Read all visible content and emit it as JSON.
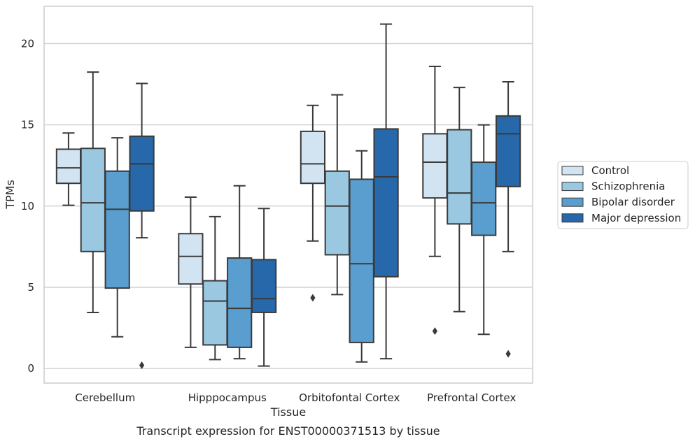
{
  "chart_data": {
    "type": "box",
    "title": "",
    "caption": "Transcript expression for ENST00000371513 by tissue",
    "xlabel": "Tissue",
    "ylabel": "TPMs",
    "ylim": [
      -0.9,
      22.3
    ],
    "yticks": [
      0,
      5,
      10,
      15,
      20
    ],
    "grid": "horizontal",
    "legend_position": "right",
    "categories": [
      "Cerebellum",
      "Hipppocampus",
      "Orbitofontal Cortex",
      "Prefrontal Cortex"
    ],
    "series": [
      {
        "name": "Control",
        "color": "#d2e3f2",
        "boxes": [
          {
            "whislo": 10.05,
            "q1": 11.4,
            "med": 12.35,
            "q3": 13.5,
            "whishi": 14.5,
            "fliers": []
          },
          {
            "whislo": 1.3,
            "q1": 5.2,
            "med": 6.9,
            "q3": 8.3,
            "whishi": 10.55,
            "fliers": []
          },
          {
            "whislo": 7.85,
            "q1": 11.4,
            "med": 12.6,
            "q3": 14.6,
            "whishi": 16.2,
            "fliers": [
              4.35
            ]
          },
          {
            "whislo": 6.9,
            "q1": 10.5,
            "med": 12.7,
            "q3": 14.45,
            "whishi": 18.6,
            "fliers": [
              2.3
            ]
          }
        ]
      },
      {
        "name": "Schizophrenia",
        "color": "#9ac8e0",
        "boxes": [
          {
            "whislo": 3.45,
            "q1": 7.2,
            "med": 10.2,
            "q3": 13.55,
            "whishi": 18.25,
            "fliers": []
          },
          {
            "whislo": 0.55,
            "q1": 1.45,
            "med": 4.15,
            "q3": 5.4,
            "whishi": 9.35,
            "fliers": []
          },
          {
            "whislo": 4.55,
            "q1": 7.0,
            "med": 10.0,
            "q3": 12.15,
            "whishi": 16.85,
            "fliers": []
          },
          {
            "whislo": 3.5,
            "q1": 8.9,
            "med": 10.8,
            "q3": 14.7,
            "whishi": 17.3,
            "fliers": []
          }
        ]
      },
      {
        "name": "Bipolar disorder",
        "color": "#5a9ecf",
        "boxes": [
          {
            "whislo": 1.95,
            "q1": 4.95,
            "med": 9.8,
            "q3": 12.15,
            "whishi": 14.2,
            "fliers": []
          },
          {
            "whislo": 0.6,
            "q1": 1.3,
            "med": 3.7,
            "q3": 6.8,
            "whishi": 11.25,
            "fliers": []
          },
          {
            "whislo": 0.4,
            "q1": 1.6,
            "med": 6.45,
            "q3": 11.65,
            "whishi": 13.4,
            "fliers": []
          },
          {
            "whislo": 2.1,
            "q1": 8.2,
            "med": 10.2,
            "q3": 12.7,
            "whishi": 15.0,
            "fliers": []
          }
        ]
      },
      {
        "name": "Major depression",
        "color": "#2668a9",
        "boxes": [
          {
            "whislo": 8.05,
            "q1": 9.7,
            "med": 12.6,
            "q3": 14.3,
            "whishi": 17.55,
            "fliers": [
              0.2
            ]
          },
          {
            "whislo": 0.15,
            "q1": 3.45,
            "med": 4.3,
            "q3": 6.7,
            "whishi": 9.85,
            "fliers": []
          },
          {
            "whislo": 0.6,
            "q1": 5.65,
            "med": 11.8,
            "q3": 14.75,
            "whishi": 21.2,
            "fliers": []
          },
          {
            "whislo": 7.2,
            "q1": 11.2,
            "med": 14.45,
            "q3": 15.55,
            "whishi": 17.65,
            "fliers": [
              0.9
            ]
          }
        ]
      }
    ]
  }
}
